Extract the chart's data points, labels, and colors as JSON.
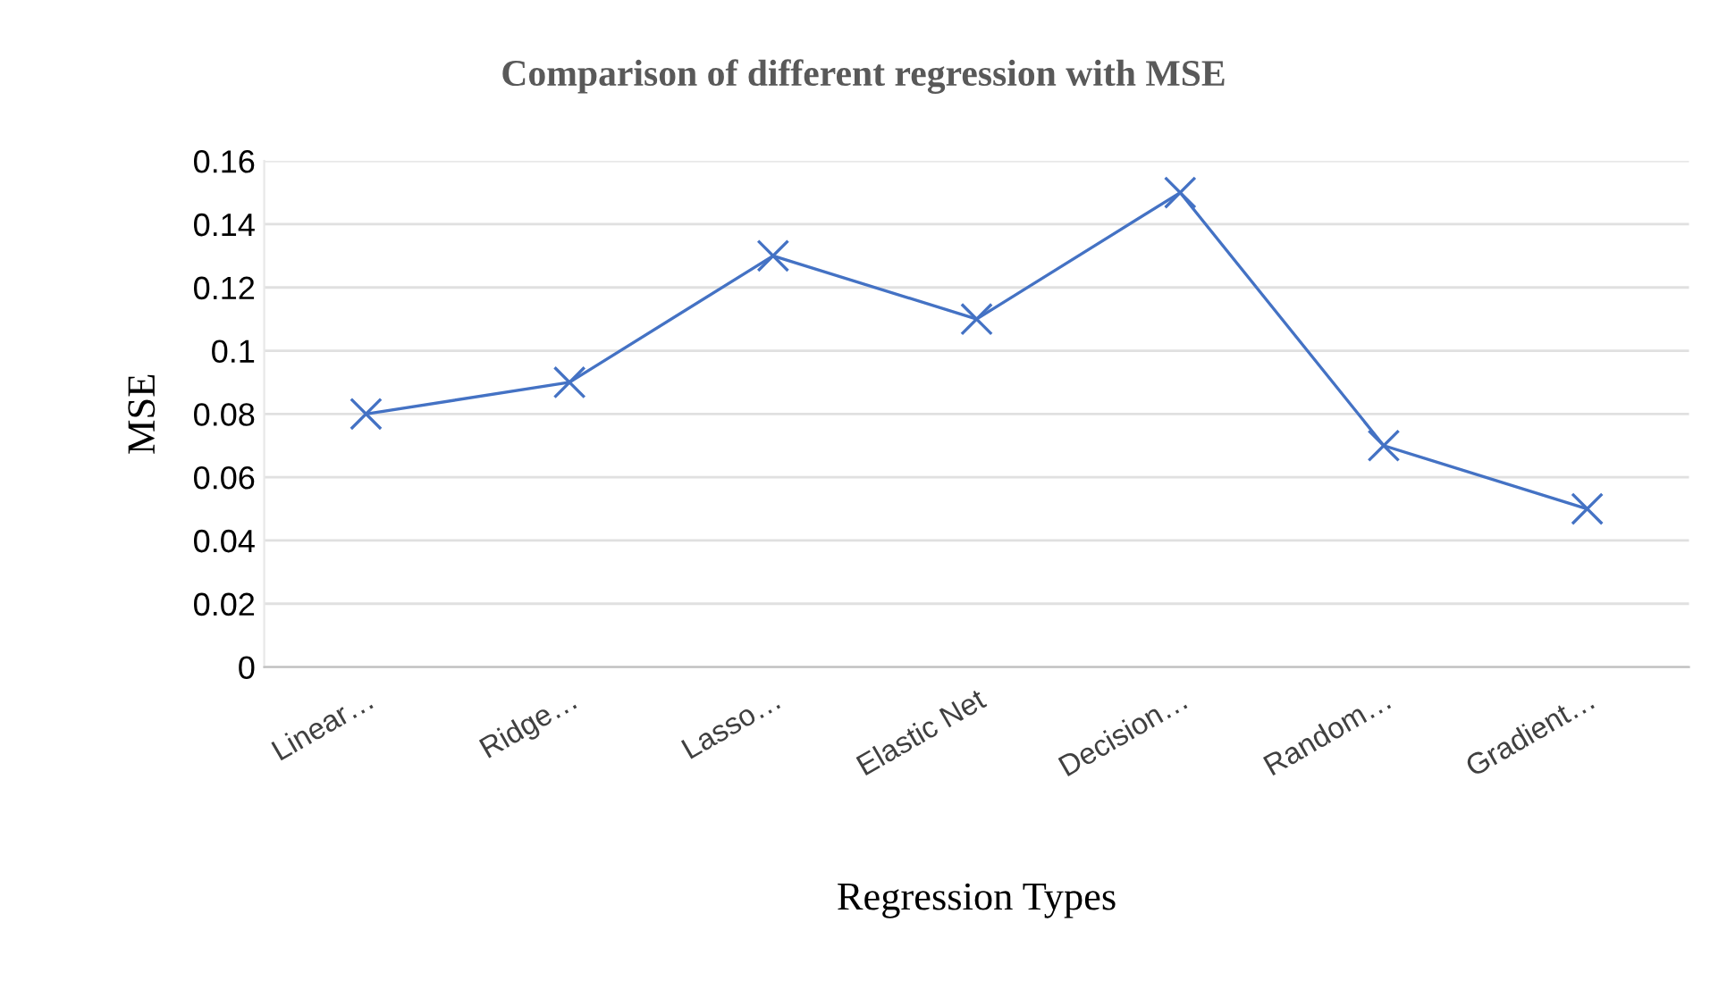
{
  "chart_data": {
    "type": "line",
    "title": "Comparison of different regression with MSE",
    "xlabel": "Regression Types",
    "ylabel": "MSE",
    "categories": [
      "Linear…",
      "Ridge…",
      "Lasso…",
      "Elastic Net",
      "Decision…",
      "Random…",
      "Gradient…"
    ],
    "series": [
      {
        "color": "#4472c4",
        "values": [
          0.08,
          0.09,
          0.13,
          0.11,
          0.15,
          0.07,
          0.05
        ]
      }
    ],
    "ylim": [
      0,
      0.16
    ],
    "yticks": [
      0,
      0.02,
      0.04,
      0.06,
      0.08,
      0.1,
      0.12,
      0.14,
      0.16
    ],
    "grid": "y",
    "marker": "cross",
    "line_style": "solid"
  }
}
